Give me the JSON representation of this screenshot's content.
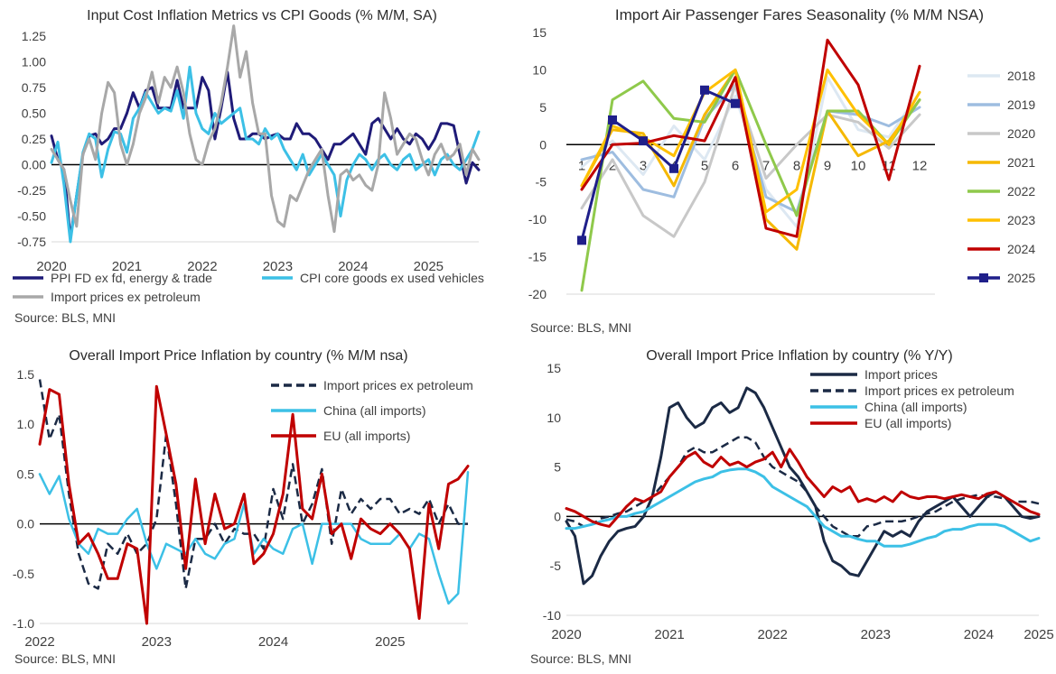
{
  "chart_data": [
    {
      "id": "c1",
      "type": "line",
      "title": "Input Cost Inflation Metrics vs CPI Goods (% M/M, SA)",
      "source": "Source: BLS, MNI",
      "ylim": [
        -0.75,
        1.25
      ],
      "yticks": [
        "1.25",
        "1.00",
        "0.75",
        "0.50",
        "0.25",
        "0.00",
        "-0.25",
        "-0.50",
        "-0.75"
      ],
      "xlabels": [
        "2020",
        "2021",
        "2022",
        "2023",
        "2024",
        "2025"
      ],
      "series": [
        {
          "name": "PPI FD ex fd, energy & trade",
          "color": "#1f1b78",
          "width": 3,
          "values": [
            0.28,
            0.05,
            -0.05,
            -0.72,
            -0.3,
            0.1,
            0.28,
            0.3,
            0.2,
            0.25,
            0.35,
            0.35,
            0.5,
            0.7,
            0.55,
            0.72,
            0.75,
            0.55,
            0.55,
            0.55,
            0.82,
            0.55,
            0.55,
            0.55,
            0.85,
            0.72,
            0.25,
            0.55,
            0.9,
            0.45,
            0.25,
            0.25,
            0.3,
            0.3,
            0.25,
            0.28,
            0.3,
            0.25,
            0.25,
            0.4,
            0.3,
            0.3,
            0.25,
            0.15,
            0.05,
            0.2,
            0.2,
            0.25,
            0.3,
            0.2,
            0.1,
            0.4,
            0.45,
            0.35,
            0.25,
            0.35,
            0.25,
            0.2,
            0.3,
            0.25,
            0.15,
            0.25,
            0.4,
            0.4,
            0.38,
            0.1,
            -0.18,
            0.02,
            -0.05
          ]
        },
        {
          "name": "CPI core goods ex used vehicles",
          "color": "#3cc0e6",
          "width": 3,
          "values": [
            0.02,
            0.22,
            -0.2,
            -0.75,
            -0.3,
            0.12,
            0.3,
            0.25,
            -0.12,
            0.15,
            0.32,
            0.3,
            0.12,
            0.45,
            0.55,
            0.7,
            0.6,
            0.5,
            0.55,
            0.52,
            0.72,
            0.45,
            0.95,
            0.5,
            0.35,
            0.3,
            0.5,
            0.4,
            0.45,
            0.5,
            0.55,
            0.25,
            0.25,
            0.2,
            0.35,
            0.25,
            0.3,
            0.15,
            0.05,
            -0.05,
            0.1,
            -0.1,
            0.0,
            0.1,
            0.0,
            -0.1,
            -0.5,
            -0.15,
            0.0,
            0.1,
            0.05,
            -0.05,
            0.05,
            0.1,
            0.0,
            -0.05,
            0.05,
            0.1,
            -0.05,
            0.0,
            0.05,
            -0.1,
            0.05,
            0.1,
            0.0,
            -0.05,
            0.05,
            0.15,
            0.32
          ]
        },
        {
          "name": "Import prices ex petroleum",
          "color": "#a8a8a8",
          "width": 3,
          "values": [
            0.15,
            0.05,
            -0.05,
            -0.35,
            -0.6,
            0.1,
            0.25,
            0.05,
            0.5,
            0.8,
            0.7,
            0.2,
            0.0,
            0.2,
            0.5,
            0.65,
            0.9,
            0.6,
            0.85,
            0.75,
            0.95,
            0.7,
            0.3,
            0.05,
            0.0,
            0.22,
            0.35,
            0.6,
            0.95,
            1.35,
            0.85,
            1.1,
            0.6,
            0.3,
            0.3,
            -0.3,
            -0.55,
            -0.6,
            -0.3,
            -0.35,
            -0.2,
            -0.05,
            0.05,
            0.15,
            -0.3,
            -0.65,
            -0.1,
            -0.05,
            -0.15,
            -0.1,
            -0.2,
            -0.25,
            0.0,
            0.7,
            0.45,
            0.1,
            0.2,
            0.3,
            0.25,
            0.05,
            -0.1,
            0.1,
            0.2,
            0.05,
            0.1,
            0.2,
            -0.1,
            0.15,
            0.05
          ]
        }
      ]
    },
    {
      "id": "c2",
      "type": "line",
      "title": "Import Air Passenger Fares Seasonality (% M/M NSA)",
      "source": "Source: BLS, MNI",
      "ylim": [
        -20,
        15
      ],
      "yticks": [
        "15",
        "10",
        "5",
        "0",
        "-5",
        "-10",
        "-15",
        "-20"
      ],
      "categories": [
        "1",
        "2",
        "3",
        "4",
        "5",
        "6",
        "7",
        "8",
        "9",
        "10",
        "11",
        "12"
      ],
      "series": [
        {
          "name": "2018",
          "color": "#dde8f2",
          "width": 3,
          "values": [
            -3,
            0.5,
            -4,
            2.5,
            -2,
            6.5,
            -6,
            -11,
            9,
            2,
            1,
            7
          ]
        },
        {
          "name": "2019",
          "color": "#9ebde0",
          "width": 3,
          "values": [
            -2,
            -1,
            -6,
            -7,
            3.5,
            8,
            -7,
            -9,
            4.5,
            4,
            2.5,
            5
          ]
        },
        {
          "name": "2020",
          "color": "#c8c8c8",
          "width": 3,
          "values": [
            -8.5,
            -2,
            -9.5,
            -12.3,
            -5,
            8,
            -4.5,
            0,
            4,
            3,
            -0.5,
            4
          ]
        },
        {
          "name": "2021",
          "color": "#f5b800",
          "width": 3,
          "values": [
            -5.5,
            2,
            1.5,
            -5.5,
            4,
            10,
            -10,
            -14,
            4.5,
            -1.5,
            0.5,
            6
          ]
        },
        {
          "name": "2022",
          "color": "#8fc94b",
          "width": 3,
          "values": [
            -19.5,
            6,
            8.5,
            3.5,
            3,
            10,
            0,
            -9.5,
            4.5,
            4.5,
            0,
            6
          ]
        },
        {
          "name": "2023",
          "color": "#ffc000",
          "width": 3,
          "values": [
            -5.5,
            2.5,
            1,
            -1.5,
            7,
            10,
            -9,
            -6,
            10,
            4,
            0,
            7
          ]
        },
        {
          "name": "2024",
          "color": "#c00000",
          "width": 3,
          "values": [
            -6,
            0,
            0.2,
            1.2,
            0.5,
            9,
            -11.2,
            -12.3,
            14,
            8,
            -4.7,
            10.5
          ]
        },
        {
          "name": "2025",
          "color": "#1f1f8a",
          "width": 3,
          "marker": "square",
          "values": [
            -12.8,
            3.3,
            0.5,
            -3.2,
            7.3,
            5.5,
            null,
            null,
            null,
            null,
            null,
            null
          ]
        }
      ]
    },
    {
      "id": "c3",
      "type": "line",
      "title": "Overall Import Price Inflation by country (% M/M nsa)",
      "source": "Source: BLS, MNI",
      "ylim": [
        -1.0,
        1.5
      ],
      "yticks": [
        "1.5",
        "1.0",
        "0.5",
        "0.0",
        "-0.5",
        "-1.0"
      ],
      "xlabels": [
        "2022",
        "2023",
        "2024",
        "2025"
      ],
      "series": [
        {
          "name": "Import prices ex petroleum",
          "color": "#1b2a45",
          "width": 2.5,
          "dash": "9 5",
          "values": [
            1.45,
            0.85,
            1.1,
            0.3,
            -0.3,
            -0.6,
            -0.65,
            -0.2,
            -0.3,
            -0.1,
            -0.3,
            -0.2,
            0.05,
            0.9,
            0.2,
            -0.65,
            -0.15,
            -0.15,
            0.0,
            -0.2,
            -0.05,
            -0.1,
            -0.1,
            -0.25,
            0.35,
            0.05,
            0.6,
            0.0,
            0.2,
            0.55,
            -0.2,
            0.35,
            0.1,
            0.25,
            0.15,
            0.25,
            0.25,
            0.1,
            0.15,
            0.1,
            0.25,
            0.0,
            0.2,
            0.0,
            0.0
          ]
        },
        {
          "name": "China (all imports)",
          "color": "#3cc0e6",
          "width": 2.5,
          "values": [
            0.5,
            0.3,
            0.48,
            0.05,
            -0.2,
            -0.3,
            -0.05,
            -0.1,
            -0.1,
            0.05,
            0.15,
            -0.2,
            -0.45,
            -0.2,
            -0.25,
            -0.3,
            -0.15,
            -0.3,
            -0.35,
            -0.2,
            -0.15,
            0.2,
            -0.3,
            -0.15,
            -0.25,
            -0.3,
            -0.05,
            0.0,
            -0.4,
            0.0,
            0.0,
            0.0,
            0.0,
            -0.15,
            -0.2,
            -0.2,
            -0.2,
            -0.1,
            -0.25,
            -0.1,
            -0.15,
            -0.5,
            -0.8,
            -0.7,
            0.52
          ]
        },
        {
          "name": "EU (all imports)",
          "color": "#c00000",
          "width": 3,
          "values": [
            0.8,
            1.35,
            1.3,
            0.4,
            -0.2,
            -0.1,
            -0.3,
            -0.55,
            -0.55,
            -0.2,
            -0.25,
            -1.0,
            1.38,
            0.9,
            0.4,
            -0.45,
            0.45,
            -0.2,
            0.3,
            -0.05,
            0.0,
            0.3,
            -0.4,
            -0.3,
            -0.1,
            0.3,
            1.1,
            0.15,
            0.05,
            0.5,
            -0.1,
            0.0,
            -0.35,
            0.05,
            -0.05,
            -0.1,
            0.0,
            -0.1,
            -0.25,
            -0.95,
            0.2,
            -0.25,
            0.4,
            0.45,
            0.58
          ]
        }
      ]
    },
    {
      "id": "c4",
      "type": "line",
      "title": "Overall Import Price Inflation by country (% Y/Y)",
      "source": "Source: BLS, MNI",
      "ylim": [
        -10,
        15
      ],
      "yticks": [
        "15",
        "10",
        "5",
        "0",
        "-5",
        "-10"
      ],
      "xlabels": [
        "2020",
        "2021",
        "2022",
        "2023",
        "2024",
        "2025"
      ],
      "series": [
        {
          "name": "Import prices",
          "color": "#1b2a45",
          "width": 3,
          "values": [
            -0.5,
            -2,
            -6.8,
            -6,
            -4,
            -2.5,
            -1.5,
            -1.2,
            -1,
            0,
            2,
            6,
            11,
            11.5,
            10,
            9,
            9.5,
            11,
            11.5,
            10.5,
            11,
            13,
            12.5,
            11,
            9,
            7,
            5,
            4,
            2.5,
            1,
            -2.5,
            -4.5,
            -5,
            -5.8,
            -6,
            -4.5,
            -3,
            -1.5,
            -2,
            -1.5,
            -2,
            -0.5,
            0.5,
            1,
            1.5,
            2,
            1,
            0,
            1,
            2,
            2.5,
            2,
            1,
            0,
            -0.2,
            0
          ]
        },
        {
          "name": "Import prices ex petroleum",
          "color": "#1b2a45",
          "width": 2.5,
          "dash": "9 5",
          "values": [
            -0.3,
            -0.5,
            -1,
            -0.8,
            -0.2,
            0,
            0.3,
            0.5,
            1,
            1.5,
            2,
            3,
            4,
            5,
            6.5,
            7,
            6.5,
            6.5,
            7,
            7.5,
            8,
            8,
            7.5,
            6,
            5,
            4.5,
            4,
            3.5,
            2.5,
            1,
            0,
            -1,
            -1.5,
            -2,
            -2,
            -1,
            -0.8,
            -0.5,
            -0.5,
            -0.5,
            -0.3,
            0,
            0.3,
            0.5,
            1,
            1.5,
            1.8,
            2,
            2.2,
            2,
            2,
            1.8,
            1.5,
            1.5,
            1.5,
            1.3
          ]
        },
        {
          "name": "China (all imports)",
          "color": "#3cc0e6",
          "width": 3,
          "values": [
            -1.2,
            -1.2,
            -1,
            -0.8,
            -0.5,
            -0.3,
            0,
            0,
            0.3,
            0.5,
            1,
            1.5,
            2,
            2.5,
            3,
            3.5,
            3.8,
            4,
            4.5,
            4.7,
            4.8,
            4.8,
            4.5,
            4,
            3,
            2.5,
            2,
            1.5,
            1,
            0,
            -1,
            -1.5,
            -2,
            -2,
            -2.3,
            -2.5,
            -2.5,
            -3,
            -3,
            -3,
            -2.8,
            -2.5,
            -2.2,
            -2,
            -1.5,
            -1.3,
            -1.3,
            -1,
            -0.8,
            -0.8,
            -0.8,
            -1,
            -1.5,
            -2,
            -2.5,
            -2.2
          ]
        },
        {
          "name": "EU (all imports)",
          "color": "#c00000",
          "width": 3,
          "values": [
            0.8,
            0.5,
            0,
            -0.5,
            -0.8,
            -1,
            0,
            1,
            1.8,
            1.5,
            2,
            2.5,
            4,
            5,
            6,
            6.5,
            5.5,
            5,
            6,
            5.2,
            5.5,
            5,
            5.5,
            5.8,
            6.5,
            5,
            6.8,
            5.5,
            4,
            3,
            2,
            3,
            2.5,
            3,
            1.5,
            1.8,
            1.5,
            2,
            1.5,
            2.5,
            2,
            1.8,
            2,
            2,
            1.8,
            2,
            2.2,
            2,
            1.8,
            2.3,
            2.5,
            2,
            1.5,
            1,
            0.5,
            0.2
          ]
        }
      ]
    }
  ]
}
